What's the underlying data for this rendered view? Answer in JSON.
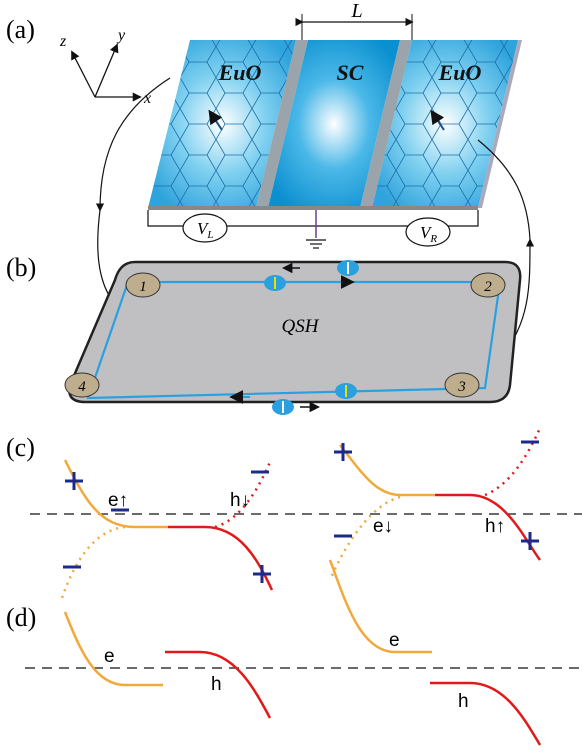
{
  "panels": {
    "a": "(a)",
    "b": "(b)",
    "c": "(c)",
    "d": "(d)"
  },
  "axes": {
    "x": "x",
    "y": "y",
    "z": "z"
  },
  "device": {
    "length": "L",
    "left": "EuO",
    "center": "SC",
    "right": "EuO",
    "vl": {
      "main": "V",
      "sub": "L"
    },
    "vr": {
      "main": "V",
      "sub": "R"
    }
  },
  "qsh": {
    "label": "QSH",
    "contacts": [
      "1",
      "2",
      "3",
      "4"
    ]
  },
  "c_labels": [
    "e↑",
    "h↓",
    "e↓",
    "h↑"
  ],
  "d_labels": [
    "e",
    "h",
    "e",
    "h"
  ]
}
